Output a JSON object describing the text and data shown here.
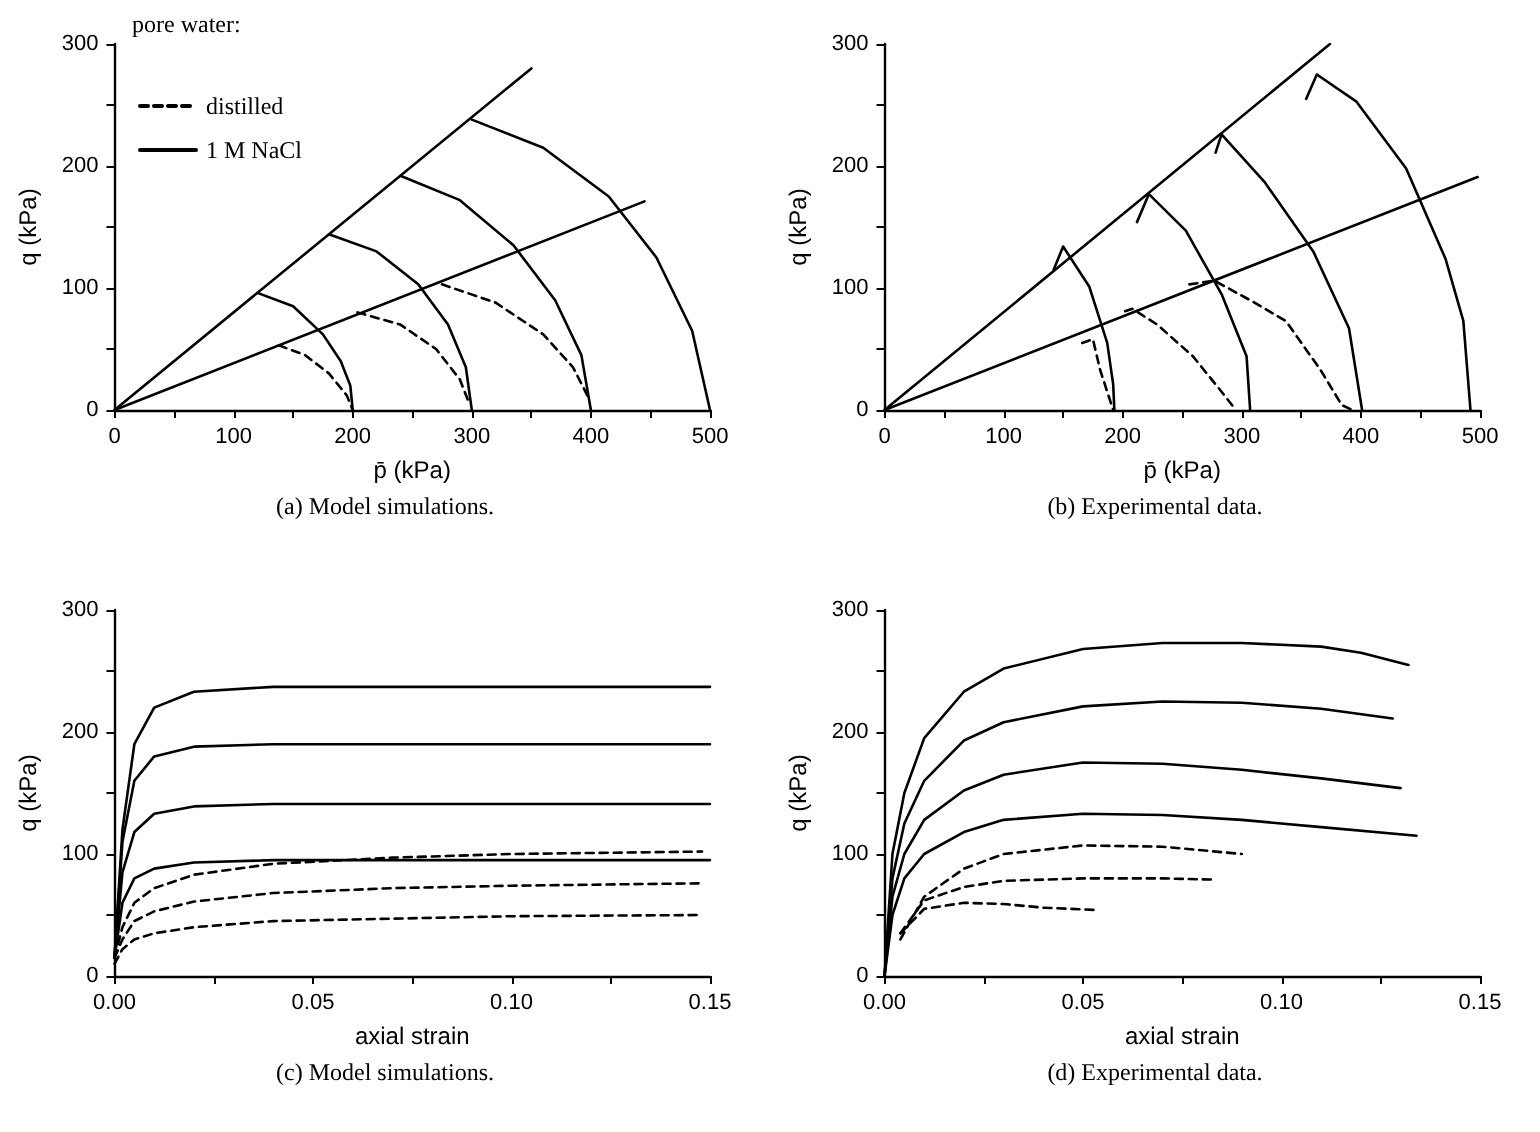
{
  "chart_data": [
    {
      "type": "line",
      "xlabel": "p̄ (kPa)",
      "ylabel": "q (kPa)",
      "legend": "top left",
      "legend_title": "pore water:",
      "marker": "none",
      "annotations": [
        "(a) Model simulations."
      ],
      "xlim": [
        0,
        500
      ],
      "xticks": [
        0,
        {
          "value": 50,
          "label": null
        },
        100,
        {
          "value": 150,
          "label": null
        },
        200,
        {
          "value": 250,
          "label": null
        },
        300,
        {
          "value": 350,
          "label": null
        },
        400,
        {
          "value": 450,
          "label": null
        },
        500
      ],
      "ylim": [
        0,
        300
      ],
      "yticks": [
        0,
        {
          "value": 50,
          "label": null
        },
        100,
        {
          "value": 150,
          "label": null
        },
        200,
        {
          "value": 250,
          "label": null
        },
        300
      ],
      "series": [
        {
          "name": "distilled",
          "color": "#000000",
          "line_style": "dashed",
          "x": [
            138,
            160,
            180,
            195,
            200
          ],
          "values": [
            53,
            45,
            30,
            12,
            0
          ]
        },
        {
          "color": "#000000",
          "line_style": "dashed",
          "x": [
            204,
            240,
            270,
            290,
            298
          ],
          "values": [
            80,
            70,
            50,
            25,
            5
          ]
        },
        {
          "color": "#000000",
          "line_style": "dashed",
          "x": [
            275,
            320,
            360,
            385,
            398
          ],
          "values": [
            103,
            88,
            62,
            35,
            10
          ]
        },
        {
          "name": "1 M NaCl",
          "color": "#000000",
          "line_style": "solid",
          "x": [
            120,
            150,
            175,
            190,
            198,
            200
          ],
          "values": [
            96,
            85,
            62,
            40,
            20,
            0
          ]
        },
        {
          "color": "#000000",
          "line_style": "solid",
          "x": [
            180,
            220,
            255,
            280,
            295,
            300
          ],
          "values": [
            144,
            130,
            103,
            70,
            35,
            0
          ]
        },
        {
          "color": "#000000",
          "line_style": "solid",
          "x": [
            240,
            290,
            335,
            370,
            392,
            400
          ],
          "values": [
            192,
            172,
            135,
            90,
            45,
            0
          ]
        },
        {
          "color": "#000000",
          "line_style": "solid",
          "x": [
            300,
            360,
            415,
            455,
            485,
            500
          ],
          "values": [
            238,
            215,
            175,
            125,
            65,
            0
          ]
        },
        {
          "color": "#000000",
          "line_style": "solid",
          "x": [
            0,
            350
          ],
          "values": [
            0,
            280
          ]
        },
        {
          "color": "#000000",
          "line_style": "solid",
          "x": [
            0,
            445
          ],
          "values": [
            0,
            171
          ]
        }
      ]
    },
    {
      "type": "line",
      "xlabel": "p̄ (kPa)",
      "ylabel": "q (kPa)",
      "marker": "none",
      "annotations": [
        "(b) Experimental data."
      ],
      "xlim": [
        0,
        500
      ],
      "xticks": [
        0,
        {
          "value": 50,
          "label": null
        },
        100,
        {
          "value": 150,
          "label": null
        },
        200,
        {
          "value": 250,
          "label": null
        },
        300,
        {
          "value": 350,
          "label": null
        },
        400,
        {
          "value": 450,
          "label": null
        },
        500
      ],
      "ylim": [
        0,
        300
      ],
      "yticks": [
        0,
        {
          "value": 50,
          "label": null
        },
        100,
        {
          "value": 150,
          "label": null
        },
        200,
        {
          "value": 250,
          "label": null
        },
        300
      ],
      "series": [
        {
          "color": "#000000",
          "line_style": "dashed",
          "x": [
            166,
            175,
            181,
            192
          ],
          "values": [
            55,
            58,
            33,
            0
          ]
        },
        {
          "color": "#000000",
          "line_style": "dashed",
          "x": [
            202,
            208,
            229,
            259,
            283,
            295
          ],
          "values": [
            81,
            83,
            70,
            44,
            15,
            0
          ]
        },
        {
          "color": "#000000",
          "line_style": "dashed",
          "x": [
            256,
            277,
            307,
            337,
            366,
            384,
            393
          ],
          "values": [
            103,
            106,
            90,
            73,
            33,
            4,
            0
          ]
        },
        {
          "color": "#000000",
          "line_style": "solid",
          "x": [
            142,
            150,
            172,
            187,
            192,
            193
          ],
          "values": [
            115,
            134,
            101,
            55,
            21,
            0
          ]
        },
        {
          "color": "#000000",
          "line_style": "solid",
          "x": [
            212,
            222,
            253,
            283,
            304,
            307
          ],
          "values": [
            154,
            177,
            147,
            95,
            44,
            0
          ]
        },
        {
          "color": "#000000",
          "line_style": "solid",
          "x": [
            278,
            283,
            319,
            360,
            390,
            401
          ],
          "values": [
            211,
            226,
            187,
            130,
            67,
            0
          ]
        },
        {
          "color": "#000000",
          "line_style": "solid",
          "x": [
            354,
            363,
            396,
            438,
            471,
            486,
            492
          ],
          "values": [
            255,
            275,
            253,
            198,
            124,
            73,
            0
          ]
        },
        {
          "color": "#000000",
          "line_style": "solid",
          "x": [
            0,
            374
          ],
          "values": [
            0,
            300
          ]
        },
        {
          "color": "#000000",
          "line_style": "solid",
          "x": [
            0,
            498
          ],
          "values": [
            0,
            191
          ]
        }
      ]
    },
    {
      "type": "line",
      "xlabel": "axial strain",
      "ylabel": "q (kPa)",
      "marker": "none",
      "annotations": [
        "(c) Model simulations."
      ],
      "xlim": [
        0,
        0.15
      ],
      "xticks": [
        {
          "value": 0,
          "label": "0.00"
        },
        {
          "value": 0.025,
          "label": null
        },
        0.05,
        {
          "value": 0.075,
          "label": null
        },
        {
          "value": 0.1,
          "label": "0.10"
        },
        {
          "value": 0.125,
          "label": null
        },
        0.15
      ],
      "ylim": [
        0,
        300
      ],
      "yticks": [
        0,
        {
          "value": 50,
          "label": null
        },
        100,
        {
          "value": 150,
          "label": null
        },
        200,
        {
          "value": 250,
          "label": null
        },
        300
      ],
      "series": [
        {
          "color": "#000000",
          "line_style": "solid",
          "x": [
            0,
            0.002,
            0.005,
            0.01,
            0.02,
            0.04,
            0.15
          ],
          "values": [
            15,
            120,
            190,
            220,
            233,
            237,
            237
          ]
        },
        {
          "color": "#000000",
          "line_style": "solid",
          "x": [
            0,
            0.002,
            0.005,
            0.01,
            0.02,
            0.04,
            0.15
          ],
          "values": [
            15,
            110,
            160,
            180,
            188,
            190,
            190
          ]
        },
        {
          "color": "#000000",
          "line_style": "solid",
          "x": [
            0,
            0.002,
            0.005,
            0.01,
            0.02,
            0.04,
            0.15
          ],
          "values": [
            15,
            85,
            118,
            133,
            139,
            141,
            141
          ]
        },
        {
          "color": "#000000",
          "line_style": "solid",
          "x": [
            0,
            0.002,
            0.005,
            0.01,
            0.02,
            0.04,
            0.15
          ],
          "values": [
            15,
            60,
            80,
            88,
            93,
            95,
            95
          ]
        },
        {
          "color": "#000000",
          "line_style": "dashed",
          "x": [
            0,
            0.002,
            0.005,
            0.01,
            0.02,
            0.04,
            0.07,
            0.1,
            0.148
          ],
          "values": [
            15,
            40,
            60,
            72,
            83,
            92,
            97,
            100,
            102
          ]
        },
        {
          "color": "#000000",
          "line_style": "dashed",
          "x": [
            0,
            0.002,
            0.005,
            0.01,
            0.02,
            0.04,
            0.07,
            0.1,
            0.148
          ],
          "values": [
            15,
            30,
            45,
            53,
            61,
            68,
            72,
            74,
            76
          ]
        },
        {
          "color": "#000000",
          "line_style": "dashed",
          "x": [
            0,
            0.002,
            0.005,
            0.01,
            0.02,
            0.04,
            0.07,
            0.1,
            0.148
          ],
          "values": [
            10,
            22,
            30,
            35,
            40,
            45,
            47,
            49,
            50
          ]
        }
      ]
    },
    {
      "type": "line",
      "xlabel": "axial strain",
      "ylabel": "q (kPa)",
      "marker": "none",
      "annotations": [
        "(d) Experimental data."
      ],
      "xlim": [
        0,
        0.15
      ],
      "xticks": [
        {
          "value": 0,
          "label": "0.00"
        },
        {
          "value": 0.025,
          "label": null
        },
        0.05,
        {
          "value": 0.075,
          "label": null
        },
        {
          "value": 0.1,
          "label": "0.10"
        },
        {
          "value": 0.125,
          "label": null
        },
        0.15
      ],
      "ylim": [
        0,
        300
      ],
      "yticks": [
        0,
        {
          "value": 50,
          "label": null
        },
        100,
        {
          "value": 150,
          "label": null
        },
        200,
        {
          "value": 250,
          "label": null
        },
        300
      ],
      "series": [
        {
          "color": "#000000",
          "line_style": "solid",
          "x": [
            0,
            0.002,
            0.005,
            0.01,
            0.02,
            0.03,
            0.05,
            0.07,
            0.09,
            0.11,
            0.12,
            0.132
          ],
          "values": [
            0,
            100,
            150,
            195,
            233,
            252,
            268,
            273,
            273,
            270,
            265,
            255
          ]
        },
        {
          "color": "#000000",
          "line_style": "solid",
          "x": [
            0,
            0.002,
            0.005,
            0.01,
            0.02,
            0.03,
            0.05,
            0.07,
            0.09,
            0.11,
            0.128
          ],
          "values": [
            0,
            80,
            125,
            160,
            193,
            208,
            221,
            225,
            224,
            219,
            211
          ]
        },
        {
          "color": "#000000",
          "line_style": "solid",
          "x": [
            0,
            0.002,
            0.005,
            0.01,
            0.02,
            0.03,
            0.05,
            0.07,
            0.09,
            0.11,
            0.13
          ],
          "values": [
            0,
            65,
            100,
            128,
            152,
            165,
            175,
            174,
            169,
            162,
            154
          ]
        },
        {
          "color": "#000000",
          "line_style": "solid",
          "x": [
            0,
            0.002,
            0.005,
            0.01,
            0.02,
            0.03,
            0.05,
            0.07,
            0.09,
            0.11,
            0.134
          ],
          "values": [
            0,
            50,
            80,
            100,
            118,
            128,
            133,
            132,
            128,
            122,
            115
          ]
        },
        {
          "color": "#000000",
          "line_style": "dashed",
          "x": [
            0.004,
            0.01,
            0.02,
            0.03,
            0.05,
            0.07,
            0.09
          ],
          "values": [
            30,
            65,
            88,
            100,
            107,
            106,
            100
          ]
        },
        {
          "color": "#000000",
          "line_style": "dashed",
          "x": [
            0.004,
            0.01,
            0.02,
            0.03,
            0.05,
            0.07,
            0.083
          ],
          "values": [
            35,
            62,
            73,
            78,
            80,
            80,
            79
          ]
        },
        {
          "color": "#000000",
          "line_style": "dashed",
          "x": [
            0.004,
            0.01,
            0.02,
            0.03,
            0.04,
            0.054
          ],
          "values": [
            35,
            55,
            60,
            59,
            56,
            54
          ]
        }
      ]
    }
  ]
}
